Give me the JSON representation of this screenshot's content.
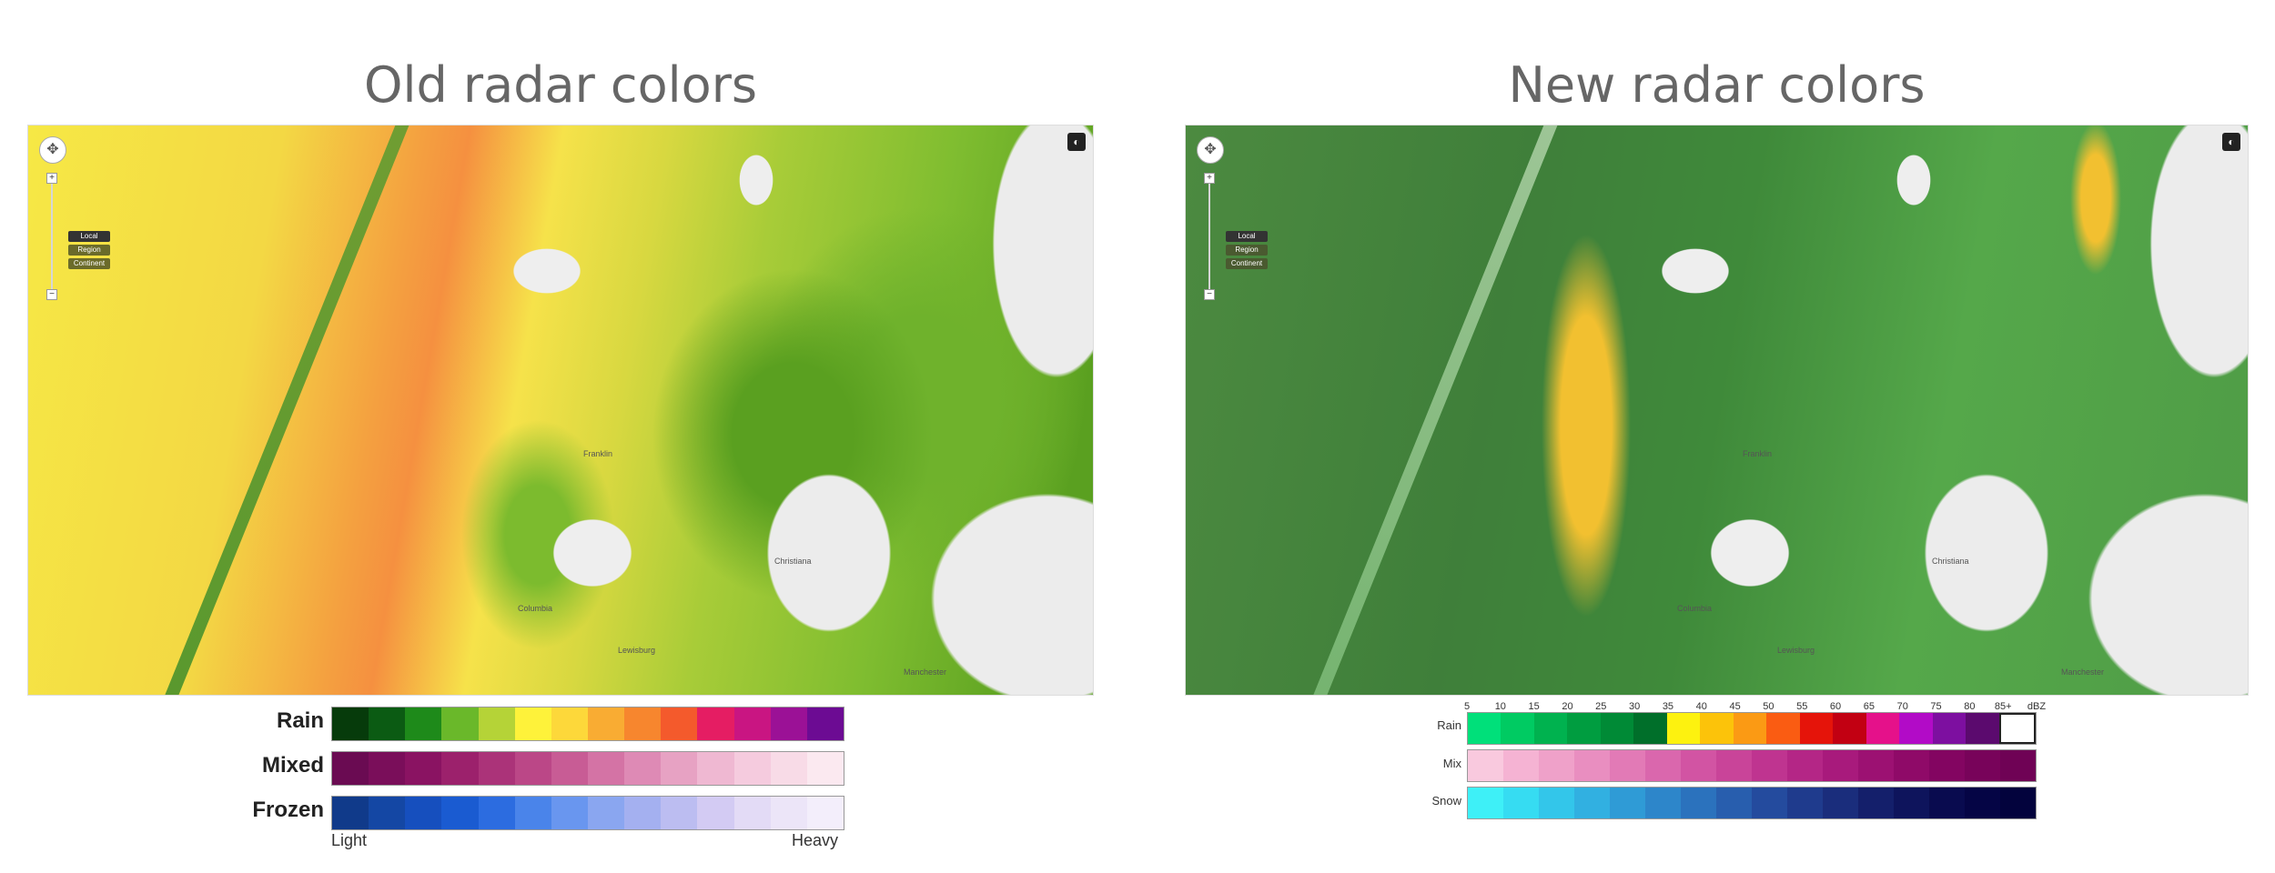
{
  "titles": {
    "old": "Old radar colors",
    "new": "New radar colors"
  },
  "map_controls": {
    "levels": [
      "Local",
      "Region",
      "Continent"
    ],
    "zoom_in": "+",
    "zoom_out": "−",
    "pan_icon": "pan-compass-icon",
    "corner_icon": "layers-icon"
  },
  "map_places": [
    "Franklin",
    "Columbia",
    "Christiana",
    "Lewisburg",
    "Manchester"
  ],
  "old_legend": {
    "rows": [
      {
        "label": "Rain",
        "colors": [
          "#063b0b",
          "#0b5b13",
          "#1e8a1a",
          "#6ab82a",
          "#b5d337",
          "#fef23a",
          "#fdd83a",
          "#f9ac33",
          "#f7862e",
          "#f45a2c",
          "#e51d63",
          "#c91582",
          "#9b1196",
          "#6c0b93"
        ]
      },
      {
        "label": "Mixed",
        "colors": [
          "#6a0b52",
          "#7a0e5a",
          "#8a1362",
          "#9c216c",
          "#ab3379",
          "#bb4787",
          "#c85c95",
          "#d473a5",
          "#de8ab5",
          "#e7a2c3",
          "#efb8d2",
          "#f5cbde",
          "#f8dbe7",
          "#fbe9f0"
        ]
      },
      {
        "label": "Frozen",
        "colors": [
          "#103a8a",
          "#1447a4",
          "#164fbe",
          "#1a5bd1",
          "#2c6ce0",
          "#4a84ea",
          "#6996ef",
          "#8aa6f0",
          "#a4b0f0",
          "#bcbdf1",
          "#d3cbf3",
          "#e3dbf6",
          "#ece5f8",
          "#f3eefb"
        ]
      }
    ],
    "light": "Light",
    "heavy": "Heavy"
  },
  "new_legend": {
    "ticks": [
      "5",
      "10",
      "15",
      "20",
      "25",
      "30",
      "35",
      "40",
      "45",
      "50",
      "55",
      "60",
      "65",
      "70",
      "75",
      "80",
      "85+",
      "dBZ"
    ],
    "rows": [
      {
        "label": "Rain",
        "colors": [
          "#00e07a",
          "#00cb62",
          "#00b24f",
          "#009d40",
          "#008a36",
          "#006f2a",
          "#fdf20f",
          "#fcc30a",
          "#fb9a14",
          "#fa5c12",
          "#e5140a",
          "#c20012",
          "#e5118a",
          "#b20bc7",
          "#7d0fa0",
          "#5b0a6e",
          "#ffffff"
        ]
      },
      {
        "label": "Mix",
        "colors": [
          "#f9c9de",
          "#f5b3d3",
          "#efa1c9",
          "#e98ec0",
          "#e27ab6",
          "#da67ad",
          "#d254a3",
          "#c94499",
          "#bf3490",
          "#b42686",
          "#a81a7c",
          "#9c1172",
          "#8f0a68",
          "#830561",
          "#78035a",
          "#6f0255"
        ]
      },
      {
        "label": "Snow",
        "colors": [
          "#3ef0f7",
          "#36dcf2",
          "#33c6ea",
          "#31b0e1",
          "#2f9bd6",
          "#2d86ca",
          "#2b72bd",
          "#285eae",
          "#244b9e",
          "#1f3b8d",
          "#1a2d7c",
          "#141f6b",
          "#0e145c",
          "#090b4f",
          "#050545",
          "#03033d"
        ]
      }
    ]
  }
}
